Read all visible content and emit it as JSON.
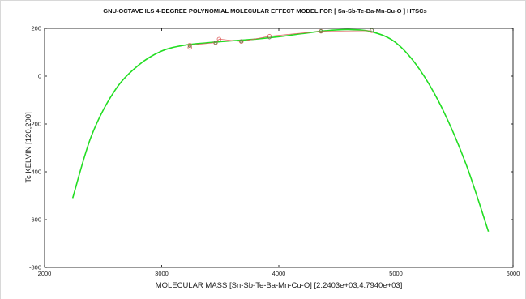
{
  "chart_data": {
    "type": "line",
    "title": "GNU-OCTAVE ILS 4-DEGREE POLYNOMIAL MOLECULAR EFFECT MODEL FOR [ Sn-Sb-Te-Ba-Mn-Cu-O ] HTSCs",
    "xlabel": "MOLECULAR MASS  [Sn-Sb-Te-Ba-Mn-Cu-O] [2.2403e+03,4.7940e+03]",
    "ylabel": "Tc KELVIN [120,200]",
    "xlim": [
      2000,
      6000
    ],
    "ylim": [
      -800,
      200
    ],
    "xticks": [
      "2000",
      "3000",
      "4000",
      "5000",
      "6000"
    ],
    "yticks": [
      "-800",
      "-600",
      "-400",
      "-200",
      "0",
      "200"
    ],
    "grid": false,
    "colors": {
      "fit": "#22dd22",
      "data": "#e06060",
      "fit_marker": "#4a8a4a",
      "axes": "#000000"
    },
    "series": [
      {
        "style": "smooth-curve",
        "x": [
          2240,
          2400,
          2600,
          2800,
          3000,
          3200,
          3400,
          3600,
          3800,
          4000,
          4200,
          4400,
          4600,
          4800,
          5000,
          5200,
          5400,
          5600,
          5790
        ],
        "y": [
          -510,
          -250,
          -60,
          45,
          105,
          130,
          140,
          148,
          155,
          165,
          178,
          190,
          195,
          185,
          140,
          30,
          -140,
          -370,
          -650
        ]
      },
      {
        "style": "data-markers",
        "x": [
          3240,
          3240,
          3460,
          3490,
          3680,
          3920,
          4360,
          4794
        ],
        "y": [
          120,
          130,
          140,
          155,
          145,
          167,
          188,
          190
        ]
      },
      {
        "style": "fit-markers",
        "x": [
          3240,
          3460,
          3680,
          3920,
          4360,
          4794
        ],
        "y": [
          126,
          140,
          146,
          162,
          188,
          192
        ]
      }
    ]
  }
}
